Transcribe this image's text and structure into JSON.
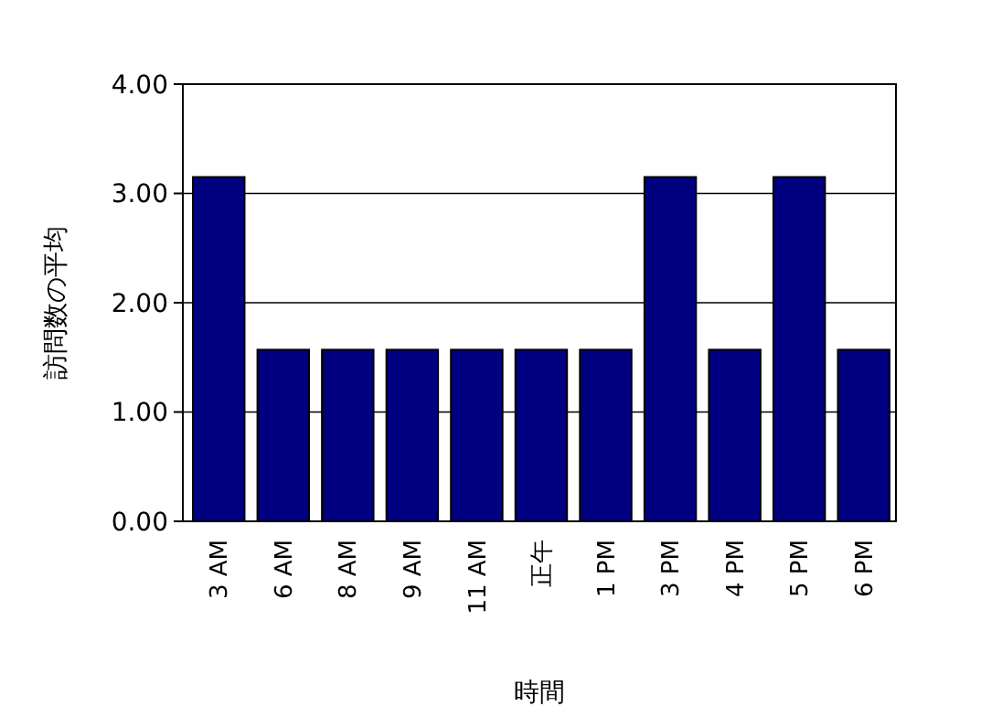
{
  "chart_data": {
    "type": "bar",
    "xlabel": "時間",
    "ylabel": "訪問数の平均",
    "categories": [
      "3 AM",
      "6 AM",
      "8 AM",
      "9 AM",
      "11 AM",
      "正午",
      "1 PM",
      "3 PM",
      "4 PM",
      "5 PM",
      "6 PM"
    ],
    "values": [
      3.15,
      1.57,
      1.57,
      1.57,
      1.57,
      1.57,
      1.57,
      3.15,
      1.57,
      3.15,
      1.57
    ],
    "color": "#000080",
    "ylim": [
      0,
      4
    ],
    "yticks": [
      {
        "value": 0,
        "label": "0.00"
      },
      {
        "value": 1,
        "label": "1.00"
      },
      {
        "value": 2,
        "label": "2.00"
      },
      {
        "value": 3,
        "label": "3.00"
      },
      {
        "value": 4,
        "label": "4.00"
      }
    ],
    "grid": "y"
  }
}
